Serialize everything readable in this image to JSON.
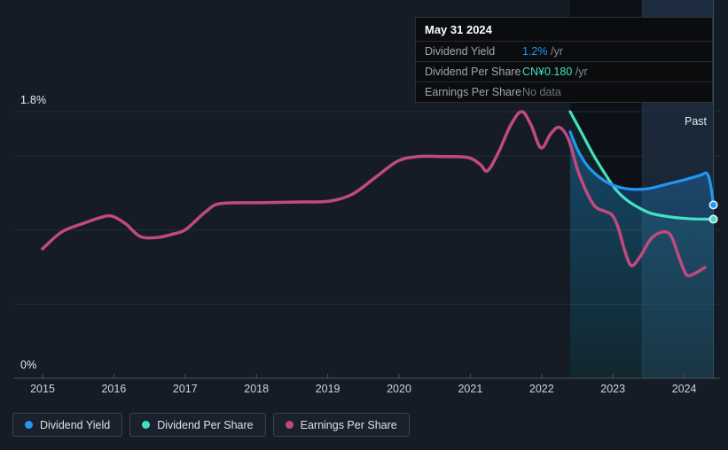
{
  "tooltip": {
    "title": "May 31 2024",
    "rows": [
      {
        "label": "Dividend Yield",
        "value": "1.2%",
        "suffix": " /yr",
        "value_color": "#2196f3"
      },
      {
        "label": "Dividend Per Share",
        "value": "CN¥0.180",
        "suffix": " /yr",
        "value_color": "#45e0c2"
      },
      {
        "label": "Earnings Per Share",
        "value": "No data",
        "suffix": "",
        "value_color": "#6e757d"
      }
    ]
  },
  "legend": {
    "items": [
      {
        "label": "Dividend Yield",
        "color": "#2196f3"
      },
      {
        "label": "Dividend Per Share",
        "color": "#45e0c2"
      },
      {
        "label": "Earnings Per Share",
        "color": "#c2497e"
      }
    ]
  },
  "chart_data": {
    "type": "line",
    "y_top_label": "1.8%",
    "y_bottom_label": "0%",
    "past_label": "Past",
    "x_ticks": [
      "2015",
      "2016",
      "2017",
      "2018",
      "2019",
      "2020",
      "2021",
      "2022",
      "2023",
      "2024"
    ],
    "axis": {
      "x_min": 2015,
      "x_max": 2024.62,
      "y_min": 0,
      "y_max": 1.8,
      "y_unit": "%",
      "grid": "horizontal-only",
      "legend_position": "bottom-left"
    },
    "gridlines_pct": [
      1.8,
      1.5,
      1.0,
      0.5
    ],
    "regions": [
      {
        "name": "pre-past-shade",
        "x0": 2022.4,
        "x1": 2023.41,
        "fill": "#0c1117"
      },
      {
        "name": "past-year-shade",
        "x0": 2023.41,
        "x1": 2024.41,
        "fill_top": "#1d2c3e",
        "fill_bottom": "#15222f"
      },
      {
        "name": "after-data",
        "x0": 2024.41,
        "x1": 2024.62,
        "fill": "#121b26"
      }
    ],
    "separators": [
      {
        "x": 2023.41,
        "color": "rgba(255,255,255,0.06)"
      },
      {
        "x": 2024.41,
        "color": "rgba(140,180,215,0.30)"
      }
    ],
    "series": [
      {
        "name": "Earnings Per Share",
        "color": "#c2497e",
        "width": 3.5,
        "end_marker": false,
        "note": "plotted on shared visual scale; no data after 2024.29",
        "points": [
          [
            2015.0,
            0.874
          ],
          [
            2015.27,
            0.988
          ],
          [
            2015.58,
            1.047
          ],
          [
            2015.8,
            1.083
          ],
          [
            2015.97,
            1.095
          ],
          [
            2016.17,
            1.041
          ],
          [
            2016.37,
            0.957
          ],
          [
            2016.62,
            0.951
          ],
          [
            2016.84,
            0.975
          ],
          [
            2017.01,
            1.005
          ],
          [
            2017.29,
            1.125
          ],
          [
            2017.49,
            1.179
          ],
          [
            2018.01,
            1.185
          ],
          [
            2018.63,
            1.19
          ],
          [
            2019.03,
            1.196
          ],
          [
            2019.35,
            1.244
          ],
          [
            2019.69,
            1.364
          ],
          [
            2019.98,
            1.466
          ],
          [
            2020.25,
            1.496
          ],
          [
            2020.62,
            1.497
          ],
          [
            2020.97,
            1.49
          ],
          [
            2021.14,
            1.443
          ],
          [
            2021.24,
            1.4
          ],
          [
            2021.39,
            1.52
          ],
          [
            2021.57,
            1.712
          ],
          [
            2021.72,
            1.8
          ],
          [
            2021.85,
            1.712
          ],
          [
            2021.99,
            1.556
          ],
          [
            2022.13,
            1.652
          ],
          [
            2022.25,
            1.694
          ],
          [
            2022.38,
            1.61
          ],
          [
            2022.51,
            1.4
          ],
          [
            2022.65,
            1.238
          ],
          [
            2022.76,
            1.155
          ],
          [
            2022.9,
            1.125
          ],
          [
            2022.99,
            1.101
          ],
          [
            2023.07,
            1.023
          ],
          [
            2023.17,
            0.856
          ],
          [
            2023.26,
            0.76
          ],
          [
            2023.38,
            0.82
          ],
          [
            2023.54,
            0.945
          ],
          [
            2023.71,
            0.988
          ],
          [
            2023.82,
            0.957
          ],
          [
            2023.93,
            0.814
          ],
          [
            2024.03,
            0.7
          ],
          [
            2024.14,
            0.706
          ],
          [
            2024.29,
            0.748
          ]
        ]
      },
      {
        "name": "Dividend Per Share",
        "color": "#45e0c2",
        "width": 3.2,
        "end_marker": true,
        "fill": "rgba(69,224,194,0.08)",
        "value_at_end": "CN¥0.180 /yr",
        "points": [
          [
            2022.4,
            1.8
          ],
          [
            2022.56,
            1.658
          ],
          [
            2022.72,
            1.514
          ],
          [
            2022.87,
            1.395
          ],
          [
            2023.03,
            1.281
          ],
          [
            2023.18,
            1.209
          ],
          [
            2023.35,
            1.155
          ],
          [
            2023.54,
            1.113
          ],
          [
            2023.81,
            1.089
          ],
          [
            2024.08,
            1.077
          ],
          [
            2024.41,
            1.074
          ]
        ]
      },
      {
        "name": "Dividend Yield",
        "color": "#2196f3",
        "width": 3.2,
        "end_marker": true,
        "fill_top": "rgba(33,150,243,0.33)",
        "fill_bottom": "rgba(33,150,243,0.05)",
        "value_at_end": "1.2% /yr",
        "points": [
          [
            2022.4,
            1.664
          ],
          [
            2022.51,
            1.538
          ],
          [
            2022.64,
            1.436
          ],
          [
            2022.79,
            1.365
          ],
          [
            2022.94,
            1.317
          ],
          [
            2023.11,
            1.287
          ],
          [
            2023.31,
            1.275
          ],
          [
            2023.51,
            1.281
          ],
          [
            2023.76,
            1.311
          ],
          [
            2024.01,
            1.341
          ],
          [
            2024.23,
            1.371
          ],
          [
            2024.32,
            1.383
          ],
          [
            2024.37,
            1.305
          ],
          [
            2024.41,
            1.17
          ]
        ]
      }
    ]
  }
}
